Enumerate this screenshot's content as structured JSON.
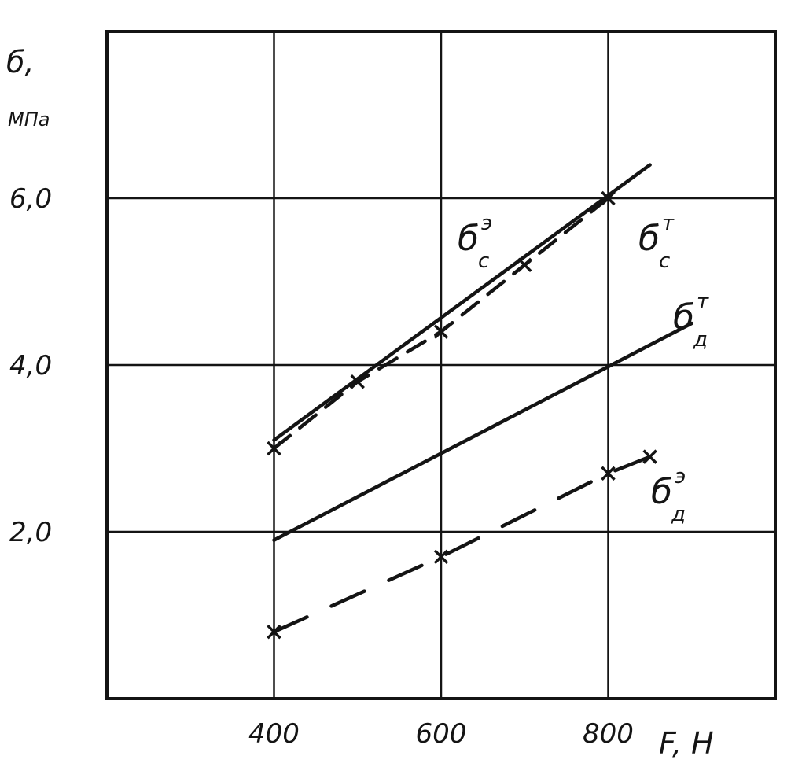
{
  "chart_data": {
    "type": "line",
    "ylabel": "б,",
    "yunit": "МПа",
    "xlabel": "F, Н",
    "x_ticks": [
      "400",
      "600",
      "800"
    ],
    "y_ticks": [
      "2,0",
      "4,0",
      "6,0"
    ],
    "x_tick_values": [
      400,
      600,
      800
    ],
    "y_tick_values": [
      2.0,
      4.0,
      6.0
    ],
    "xlim": [
      200,
      1000
    ],
    "ylim": [
      0,
      8
    ],
    "grid": true,
    "series": [
      {
        "label": "б",
        "sub": "с",
        "sup": "э",
        "style": "dashed",
        "x": [
          400,
          500,
          600,
          700,
          800
        ],
        "y": [
          3.0,
          3.8,
          4.4,
          5.2,
          6.0
        ]
      },
      {
        "label": "б",
        "sub": "с",
        "sup": "т",
        "style": "solid",
        "x": [
          400,
          850
        ],
        "y": [
          3.1,
          6.4
        ]
      },
      {
        "label": "б",
        "sub": "д",
        "sup": "т",
        "style": "solid",
        "x": [
          400,
          900
        ],
        "y": [
          1.9,
          4.5
        ]
      },
      {
        "label": "б",
        "sub": "д",
        "sup": "э",
        "style": "dashed",
        "x": [
          400,
          600,
          800,
          850
        ],
        "y": [
          0.8,
          1.7,
          2.7,
          2.9
        ]
      }
    ],
    "colors": {
      "ink": "#141414",
      "background": "#ffffff"
    }
  }
}
